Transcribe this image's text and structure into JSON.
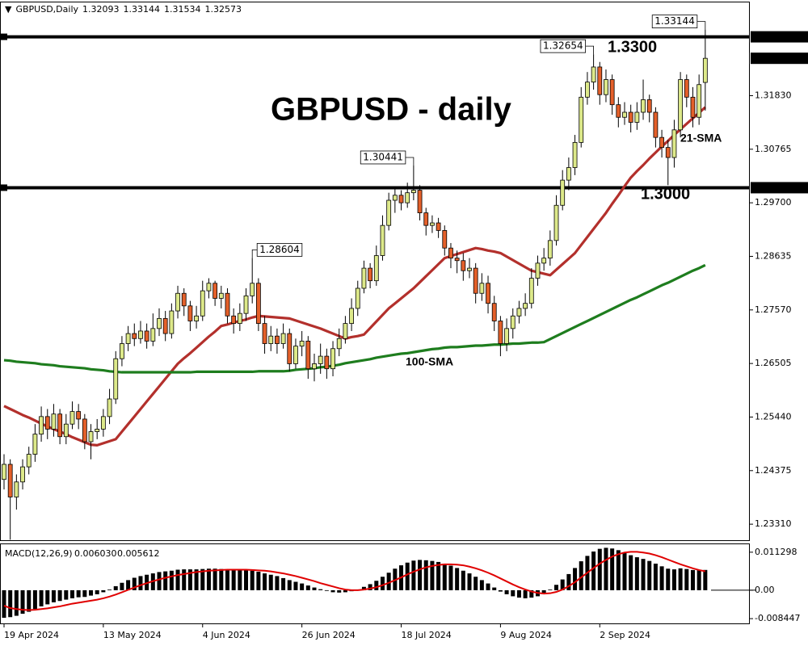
{
  "chart_data": {
    "type": "candlestick",
    "title": "GBPUSD - daily",
    "symbol": "GBPUSD,Daily",
    "up_color": "#dde98a",
    "down_color": "#e4602a",
    "categories": [
      "19 Apr 2024",
      null,
      null,
      null,
      null,
      null,
      null,
      null,
      null,
      null,
      null,
      null,
      null,
      null,
      null,
      null,
      "13 May 2024",
      null,
      null,
      null,
      null,
      null,
      null,
      null,
      null,
      null,
      null,
      null,
      null,
      null,
      null,
      null,
      "4 Jun 2024",
      null,
      null,
      null,
      null,
      null,
      null,
      null,
      null,
      null,
      null,
      null,
      null,
      null,
      null,
      null,
      "26 Jun 2024",
      null,
      null,
      null,
      null,
      null,
      null,
      null,
      null,
      null,
      null,
      null,
      null,
      null,
      null,
      null,
      "18 Jul 2024",
      null,
      null,
      null,
      null,
      null,
      null,
      null,
      null,
      null,
      null,
      null,
      null,
      null,
      null,
      null,
      "9 Aug 2024",
      null,
      null,
      null,
      null,
      null,
      null,
      null,
      null,
      null,
      null,
      null,
      null,
      null,
      null,
      null,
      "2 Sep 2024",
      null,
      null,
      null,
      null,
      null,
      null,
      null,
      null,
      null,
      null,
      null,
      null,
      null,
      null,
      null,
      null,
      null
    ],
    "open": [
      1.242,
      1.245,
      1.2385,
      1.2415,
      1.2445,
      1.247,
      1.251,
      1.2545,
      1.252,
      1.255,
      1.2505,
      1.253,
      1.2555,
      1.254,
      1.2495,
      1.2515,
      1.252,
      1.2545,
      1.258,
      1.266,
      1.269,
      1.271,
      1.27,
      1.2715,
      1.2695,
      1.272,
      1.274,
      1.271,
      1.2755,
      1.279,
      1.2765,
      1.2735,
      1.2745,
      1.2795,
      1.281,
      1.278,
      1.279,
      1.2745,
      1.273,
      1.275,
      1.2785,
      1.281,
      1.273,
      1.269,
      1.2705,
      1.269,
      1.271,
      1.265,
      1.2685,
      1.2695,
      1.264,
      1.265,
      1.2665,
      1.264,
      1.268,
      1.27,
      1.273,
      1.276,
      1.28,
      1.284,
      1.2815,
      1.2865,
      1.2925,
      1.2975,
      1.2985,
      1.297,
      1.299,
      1.2995,
      1.295,
      1.2925,
      1.293,
      1.2915,
      1.288,
      1.286,
      1.2855,
      1.2835,
      1.284,
      1.279,
      1.281,
      1.277,
      1.2735,
      1.269,
      1.272,
      1.2745,
      1.276,
      1.277,
      1.282,
      1.285,
      1.286,
      1.2895,
      1.2965,
      1.3015,
      1.304,
      1.309,
      1.318,
      1.321,
      1.324,
      1.3185,
      1.3215,
      1.3165,
      1.314,
      1.315,
      1.313,
      1.315,
      1.3175,
      1.315,
      1.31,
      1.308,
      1.306,
      1.3115,
      1.3215,
      1.318,
      1.314,
      1.32093
    ],
    "high": [
      1.247,
      1.246,
      1.243,
      1.246,
      1.2485,
      1.253,
      1.2565,
      1.256,
      1.257,
      1.256,
      1.255,
      1.2575,
      1.257,
      1.255,
      1.253,
      1.254,
      1.256,
      1.26,
      1.2675,
      1.2705,
      1.2725,
      1.273,
      1.2735,
      1.273,
      1.275,
      1.276,
      1.2755,
      1.277,
      1.2805,
      1.28,
      1.2775,
      1.2765,
      1.2815,
      1.282,
      1.2815,
      1.2805,
      1.28,
      1.276,
      1.277,
      1.28,
      1.28604,
      1.282,
      1.2745,
      1.2725,
      1.272,
      1.273,
      1.272,
      1.27,
      1.2715,
      1.2705,
      1.267,
      1.269,
      1.268,
      1.2695,
      1.272,
      1.2745,
      1.278,
      1.2815,
      1.2855,
      1.285,
      1.2885,
      1.2945,
      1.299,
      1.3,
      1.2995,
      1.301,
      1.30441,
      1.3005,
      1.296,
      1.2945,
      1.294,
      1.2925,
      1.289,
      1.2875,
      1.287,
      1.286,
      1.285,
      1.283,
      1.2825,
      1.2785,
      1.2745,
      1.274,
      1.276,
      1.2775,
      1.279,
      1.284,
      1.2865,
      1.288,
      1.2915,
      1.2985,
      1.3035,
      1.306,
      1.3105,
      1.32,
      1.323,
      1.32654,
      1.325,
      1.3235,
      1.3225,
      1.318,
      1.317,
      1.3165,
      1.317,
      1.3215,
      1.3185,
      1.316,
      1.3115,
      1.3095,
      1.3135,
      1.323,
      1.3225,
      1.32,
      1.3225,
      1.33144
    ],
    "low": [
      1.24,
      1.23,
      1.236,
      1.24,
      1.243,
      1.2455,
      1.2495,
      1.25,
      1.2505,
      1.249,
      1.249,
      1.252,
      1.252,
      1.248,
      1.246,
      1.25,
      1.2505,
      1.253,
      1.257,
      1.2645,
      1.2675,
      1.2685,
      1.269,
      1.268,
      1.2685,
      1.2705,
      1.2695,
      1.27,
      1.274,
      1.2745,
      1.2715,
      1.272,
      1.2735,
      1.278,
      1.2765,
      1.276,
      1.273,
      1.271,
      1.2715,
      1.2735,
      1.277,
      1.2715,
      1.267,
      1.2675,
      1.267,
      1.268,
      1.2635,
      1.264,
      1.2665,
      1.262,
      1.2615,
      1.263,
      1.262,
      1.2625,
      1.2665,
      1.269,
      1.2715,
      1.2745,
      1.279,
      1.28,
      1.2805,
      1.2855,
      1.2915,
      1.295,
      1.2955,
      1.296,
      1.2975,
      1.2935,
      1.2905,
      1.291,
      1.29,
      1.2865,
      1.284,
      1.283,
      1.2815,
      1.282,
      1.277,
      1.2775,
      1.275,
      1.2715,
      1.2665,
      1.2675,
      1.27,
      1.273,
      1.2745,
      1.276,
      1.2805,
      1.2835,
      1.2845,
      1.2885,
      1.2955,
      1.2995,
      1.3025,
      1.308,
      1.3165,
      1.3195,
      1.3165,
      1.317,
      1.3145,
      1.312,
      1.3125,
      1.311,
      1.3115,
      1.3135,
      1.313,
      1.308,
      1.306,
      1.3005,
      1.304,
      1.31,
      1.316,
      1.312,
      1.3125,
      1.31534
    ],
    "close": [
      1.245,
      1.2385,
      1.2415,
      1.2445,
      1.247,
      1.251,
      1.2545,
      1.252,
      1.255,
      1.2505,
      1.253,
      1.2555,
      1.254,
      1.2495,
      1.2515,
      1.252,
      1.2545,
      1.258,
      1.266,
      1.269,
      1.271,
      1.27,
      1.2715,
      1.2695,
      1.272,
      1.274,
      1.271,
      1.2755,
      1.279,
      1.2765,
      1.2735,
      1.2745,
      1.2795,
      1.281,
      1.278,
      1.279,
      1.2745,
      1.273,
      1.275,
      1.2785,
      1.281,
      1.273,
      1.269,
      1.2705,
      1.269,
      1.271,
      1.265,
      1.2685,
      1.2695,
      1.264,
      1.265,
      1.2665,
      1.264,
      1.268,
      1.27,
      1.273,
      1.276,
      1.28,
      1.284,
      1.2815,
      1.2865,
      1.2925,
      1.2975,
      1.2985,
      1.297,
      1.299,
      1.2995,
      1.295,
      1.2925,
      1.293,
      1.2915,
      1.288,
      1.286,
      1.2855,
      1.2835,
      1.284,
      1.279,
      1.281,
      1.277,
      1.2735,
      1.269,
      1.272,
      1.2745,
      1.276,
      1.277,
      1.282,
      1.285,
      1.286,
      1.2895,
      1.2965,
      1.3015,
      1.304,
      1.309,
      1.318,
      1.321,
      1.324,
      1.3185,
      1.3215,
      1.3165,
      1.314,
      1.315,
      1.313,
      1.315,
      1.3175,
      1.315,
      1.31,
      1.308,
      1.306,
      1.3115,
      1.3215,
      1.318,
      1.314,
      1.3205,
      1.32573
    ],
    "overlays": [
      {
        "name": "21-SMA",
        "color": "#b3302c",
        "values": [
          1.2566,
          1.256,
          1.2554,
          1.2548,
          1.2543,
          1.2537,
          1.2531,
          1.2525,
          1.252,
          1.2515,
          1.251,
          1.2504,
          1.2499,
          1.2494,
          1.2489,
          1.2488,
          1.2492,
          1.2496,
          1.25,
          1.2515,
          1.253,
          1.2545,
          1.256,
          1.2575,
          1.259,
          1.2605,
          1.262,
          1.2635,
          1.265,
          1.2661,
          1.2671,
          1.2682,
          1.2693,
          1.2704,
          1.2714,
          1.2725,
          1.2728,
          1.2732,
          1.2735,
          1.2738,
          1.2742,
          1.2745,
          1.2744,
          1.2743,
          1.2742,
          1.2741,
          1.274,
          1.2736,
          1.2732,
          1.2728,
          1.2724,
          1.272,
          1.2715,
          1.271,
          1.2705,
          1.27,
          1.2703,
          1.2705,
          1.2708,
          1.2721,
          1.2734,
          1.2747,
          1.276,
          1.277,
          1.278,
          1.279,
          1.28,
          1.2812,
          1.2824,
          1.2836,
          1.2848,
          1.286,
          1.2864,
          1.2868,
          1.2872,
          1.2876,
          1.288,
          1.2878,
          1.2875,
          1.2873,
          1.287,
          1.2863,
          1.2856,
          1.2849,
          1.2842,
          1.2835,
          1.2832,
          1.2829,
          1.2826,
          1.2837,
          1.2848,
          1.2859,
          1.287,
          1.2886,
          1.2902,
          1.2918,
          1.2934,
          1.295,
          1.2968,
          1.2985,
          1.3003,
          1.302,
          1.3033,
          1.3045,
          1.3058,
          1.307,
          1.3082,
          1.3093,
          1.3105,
          1.3116,
          1.3127,
          1.3138,
          1.3149,
          1.316
        ]
      },
      {
        "name": "100-SMA",
        "color": "#1e7d1e",
        "values": [
          1.2657,
          1.2656,
          1.2654,
          1.2653,
          1.2652,
          1.2651,
          1.2649,
          1.2648,
          1.2647,
          1.2645,
          1.2644,
          1.2643,
          1.2642,
          1.2641,
          1.2639,
          1.2638,
          1.2637,
          1.2635,
          1.2634,
          1.2633,
          1.2633,
          1.2633,
          1.2633,
          1.2633,
          1.2633,
          1.2633,
          1.2633,
          1.2633,
          1.2633,
          1.2633,
          1.2633,
          1.2634,
          1.2634,
          1.2634,
          1.2634,
          1.2634,
          1.2634,
          1.2634,
          1.2634,
          1.2634,
          1.2634,
          1.2635,
          1.2635,
          1.2635,
          1.2635,
          1.2635,
          1.2636,
          1.2638,
          1.2639,
          1.264,
          1.2641,
          1.2643,
          1.2644,
          1.2646,
          1.2648,
          1.2651,
          1.2653,
          1.2655,
          1.2657,
          1.2659,
          1.2662,
          1.2664,
          1.2666,
          1.2668,
          1.267,
          1.2671,
          1.2673,
          1.2675,
          1.2677,
          1.2679,
          1.268,
          1.2682,
          1.2683,
          1.2683,
          1.2684,
          1.2685,
          1.2686,
          1.2686,
          1.2687,
          1.2688,
          1.2688,
          1.2689,
          1.269,
          1.269,
          1.2691,
          1.2692,
          1.2692,
          1.2693,
          1.2699,
          1.2705,
          1.2711,
          1.2717,
          1.2723,
          1.2729,
          1.2735,
          1.2741,
          1.2747,
          1.2753,
          1.2759,
          1.2765,
          1.2771,
          1.2777,
          1.2782,
          1.2788,
          1.2794,
          1.28,
          1.2806,
          1.2811,
          1.2817,
          1.2823,
          1.2829,
          1.2835,
          1.284,
          1.2846
        ]
      }
    ],
    "levels": [
      {
        "value": 1.33,
        "label": "1.3300",
        "axis_label": "1.33000"
      },
      {
        "value": 1.3,
        "label": "1.3000",
        "axis_label": "1.30000"
      }
    ],
    "ylim": [
      1.22975,
      1.33459
    ],
    "yticks": [
      {
        "value": 1.3183,
        "label": "1.31830"
      },
      1.30765,
      {
        "value": 1.297,
        "label": "1.29700"
      },
      1.28635,
      {
        "value": 1.2757,
        "label": "1.27570"
      },
      1.26505,
      {
        "value": 1.2544,
        "label": "1.25440"
      },
      1.24375,
      {
        "value": 1.2331,
        "label": "1.23310"
      }
    ],
    "macd": {
      "type": "bar",
      "name": "MACD(12,26,9)",
      "ylim": [
        -0.0101,
        0.0139
      ],
      "yticks": [
        0.011298,
        {
          "value": 0,
          "label": "0.00"
        },
        -0.008447
      ],
      "histogram": {
        "color": "#000000",
        "values": [
          -0.0082,
          -0.008,
          -0.0076,
          -0.007,
          -0.0064,
          -0.0056,
          -0.0048,
          -0.0042,
          -0.0036,
          -0.0032,
          -0.0028,
          -0.0024,
          -0.0021,
          -0.002,
          -0.0016,
          -0.0012,
          -0.0006,
          0.0002,
          0.0012,
          0.0022,
          0.003,
          0.0037,
          0.0042,
          0.0046,
          0.005,
          0.0054,
          0.0056,
          0.0058,
          0.0061,
          0.0062,
          0.0062,
          0.0062,
          0.0063,
          0.0064,
          0.0064,
          0.0063,
          0.0062,
          0.0061,
          0.006,
          0.0059,
          0.0058,
          0.0055,
          0.005,
          0.0046,
          0.0042,
          0.0036,
          0.003,
          0.0025,
          0.002,
          0.0014,
          0.0008,
          0.0003,
          -0.0002,
          -0.0006,
          -0.0007,
          -0.0006,
          -0.0003,
          0.0002,
          0.001,
          0.0018,
          0.0028,
          0.004,
          0.0052,
          0.0064,
          0.0074,
          0.0082,
          0.0088,
          0.009,
          0.0089,
          0.0087,
          0.0084,
          0.0079,
          0.0073,
          0.0066,
          0.0058,
          0.005,
          0.004,
          0.003,
          0.002,
          0.0008,
          -0.0004,
          -0.0012,
          -0.0018,
          -0.0022,
          -0.0024,
          -0.0022,
          -0.0018,
          -0.001,
          0.0002,
          0.0016,
          0.0032,
          0.0048,
          0.0066,
          0.0086,
          0.0102,
          0.0115,
          0.0123,
          0.0126,
          0.0124,
          0.0119,
          0.0112,
          0.0104,
          0.0098,
          0.0093,
          0.0087,
          0.0079,
          0.0071,
          0.0064,
          0.0062,
          0.0065,
          0.0063,
          0.006,
          0.0061,
          0.00603
        ],
        "value_labels": [
          null,
          null,
          null,
          null,
          null,
          null,
          null,
          null,
          null,
          null,
          null,
          null,
          null,
          null,
          null,
          null,
          null,
          null,
          null,
          null,
          null,
          null,
          null,
          null,
          null,
          null,
          null,
          null,
          null,
          null,
          null,
          null,
          null,
          null,
          null,
          null,
          null,
          null,
          null,
          null,
          null,
          null,
          null,
          null,
          null,
          null,
          null,
          null,
          null,
          null,
          null,
          null,
          null,
          null,
          null,
          null,
          null,
          null,
          null,
          null,
          null,
          null,
          null,
          null,
          null,
          null,
          null,
          null,
          null,
          null,
          null,
          null,
          null,
          null,
          null,
          null,
          null,
          null,
          null,
          null,
          null,
          null,
          null,
          null,
          null,
          null,
          null,
          null,
          null,
          null,
          null,
          null,
          null,
          null,
          null,
          null,
          null,
          null,
          null,
          null,
          null,
          null,
          null,
          null,
          null,
          null,
          null,
          null,
          null,
          null,
          null,
          null,
          null,
          "0.006030"
        ]
      },
      "signal": {
        "color": "#e00000",
        "values": [
          -0.0046,
          -0.0053,
          -0.0056,
          -0.0058,
          -0.0059,
          -0.0058,
          -0.0056,
          -0.0054,
          -0.0051,
          -0.0048,
          -0.0044,
          -0.004,
          -0.0037,
          -0.0034,
          -0.0031,
          -0.0028,
          -0.0024,
          -0.0019,
          -0.0013,
          -0.0006,
          0.0001,
          0.0008,
          0.0015,
          0.0021,
          0.0027,
          0.0032,
          0.0037,
          0.0041,
          0.0045,
          0.0048,
          0.0051,
          0.0054,
          0.0056,
          0.0058,
          0.0059,
          0.006,
          0.0061,
          0.0061,
          0.0061,
          0.0061,
          0.006,
          0.0059,
          0.0058,
          0.0056,
          0.0053,
          0.005,
          0.0046,
          0.0042,
          0.0037,
          0.0032,
          0.0027,
          0.0021,
          0.0016,
          0.0011,
          0.0006,
          0.0002,
          0.0,
          0.0,
          0.0002,
          0.0005,
          0.0009,
          0.0015,
          0.0022,
          0.003,
          0.0038,
          0.0047,
          0.0055,
          0.0062,
          0.0068,
          0.0072,
          0.0075,
          0.0077,
          0.0077,
          0.0076,
          0.0074,
          0.007,
          0.0065,
          0.0059,
          0.0052,
          0.0044,
          0.0035,
          0.0026,
          0.0017,
          0.0009,
          0.0002,
          -0.0004,
          -0.0008,
          -0.001,
          -0.0009,
          -0.0005,
          0.0002,
          0.0012,
          0.0024,
          0.0038,
          0.0052,
          0.0066,
          0.0079,
          0.009,
          0.01,
          0.0107,
          0.0112,
          0.0114,
          0.0114,
          0.0112,
          0.0109,
          0.0104,
          0.0098,
          0.0091,
          0.0084,
          0.0077,
          0.0071,
          0.0065,
          0.006,
          0.005612
        ]
      }
    }
  }
}
